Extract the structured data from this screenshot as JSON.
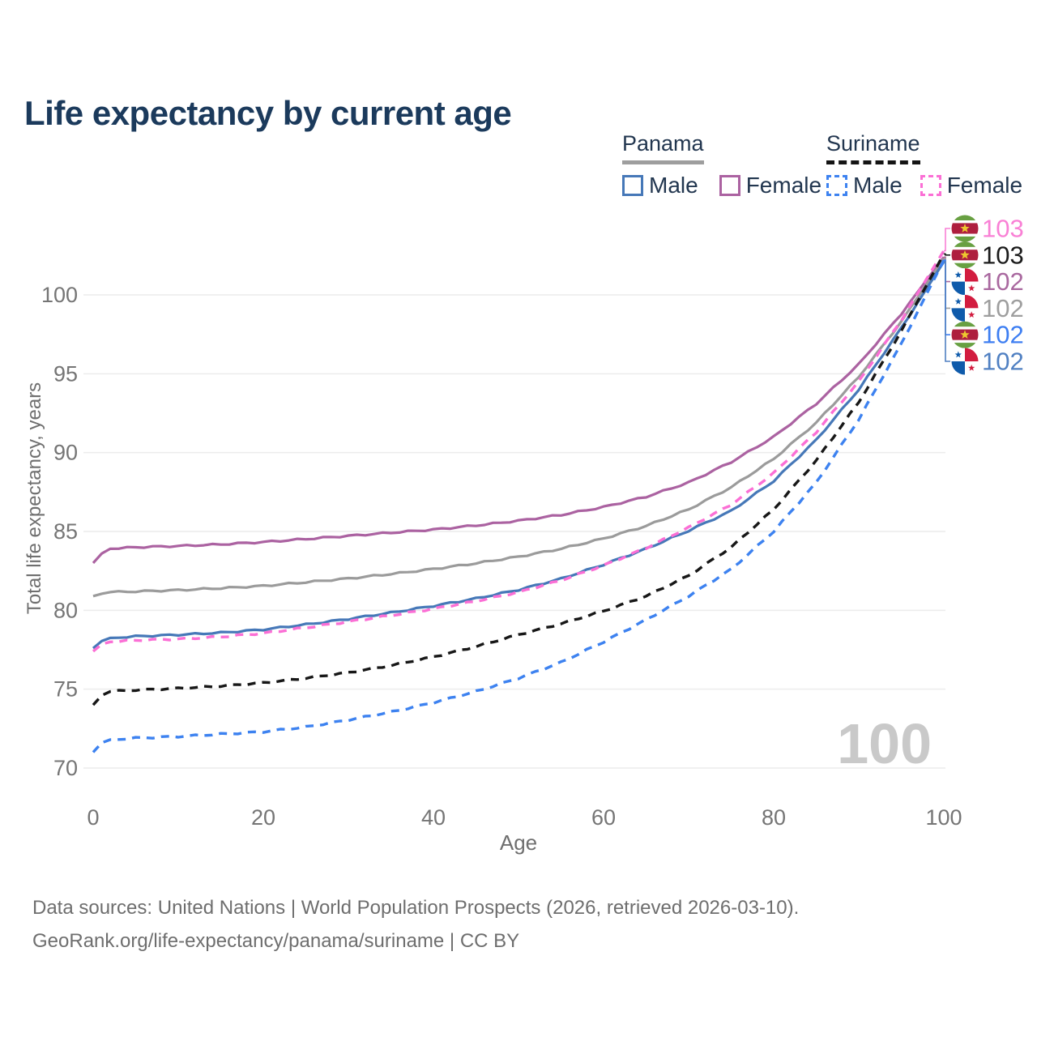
{
  "title": "Life expectancy by current age",
  "legend": {
    "groups": [
      {
        "name": "Panama",
        "line_style": "solid",
        "line_color": "#9e9e9e",
        "items": [
          {
            "label": "Male",
            "color": "#4678b8",
            "dashed": false
          },
          {
            "label": "Female",
            "color": "#ab62a1",
            "dashed": false
          }
        ]
      },
      {
        "name": "Suriname",
        "line_style": "dashed",
        "line_color": "#141414",
        "items": [
          {
            "label": "Male",
            "color": "#3d82f0",
            "dashed": true
          },
          {
            "label": "Female",
            "color": "#fb6fd5",
            "dashed": true
          }
        ]
      }
    ]
  },
  "chart_data": {
    "type": "line",
    "title": "Life expectancy by current age",
    "xlabel": "Age",
    "ylabel": "Total life expectancy, years",
    "xlim": [
      0,
      100
    ],
    "ylim": [
      69,
      103.5
    ],
    "x_ticks": [
      0,
      20,
      40,
      60,
      80,
      100
    ],
    "y_ticks": [
      70,
      75,
      80,
      85,
      90,
      95,
      100
    ],
    "grid": "horizontal-only",
    "legend_position": "top-right",
    "watermark": "100",
    "x": [
      0,
      1,
      2,
      5,
      10,
      15,
      20,
      25,
      30,
      35,
      40,
      45,
      50,
      55,
      60,
      65,
      70,
      75,
      80,
      85,
      90,
      95,
      100
    ],
    "series": [
      {
        "id": "panama_female",
        "name": "Panama Female",
        "color": "#ab62a1",
        "dashed": false,
        "values": [
          83.0,
          83.6,
          83.9,
          84.0,
          84.08,
          84.18,
          84.33,
          84.52,
          84.72,
          84.92,
          85.12,
          85.38,
          85.68,
          86.05,
          86.55,
          87.2,
          88.1,
          89.4,
          91.0,
          93.1,
          95.6,
          98.8,
          102.4
        ]
      },
      {
        "id": "panama_total",
        "name": "Panama",
        "color": "#9b9b9b",
        "dashed": false,
        "values": [
          80.9,
          81.05,
          81.15,
          81.2,
          81.28,
          81.4,
          81.55,
          81.78,
          82.02,
          82.3,
          82.62,
          82.98,
          83.4,
          83.9,
          84.55,
          85.35,
          86.4,
          87.8,
          89.6,
          91.9,
          94.8,
          98.3,
          102.3
        ]
      },
      {
        "id": "panama_male",
        "name": "Panama Male",
        "color": "#4678b8",
        "dashed": false,
        "values": [
          77.6,
          78.05,
          78.25,
          78.35,
          78.45,
          78.58,
          78.78,
          79.1,
          79.45,
          79.85,
          80.28,
          80.75,
          81.3,
          82.0,
          82.9,
          83.9,
          85.05,
          86.3,
          88.2,
          90.8,
          94.0,
          97.9,
          102.1
        ]
      },
      {
        "id": "suriname_female",
        "name": "Suriname Female",
        "color": "#fb6fd5",
        "dashed": true,
        "values": [
          77.4,
          77.85,
          78.0,
          78.1,
          78.18,
          78.32,
          78.55,
          78.9,
          79.28,
          79.68,
          80.1,
          80.58,
          81.15,
          81.9,
          82.85,
          83.95,
          85.25,
          86.7,
          88.7,
          91.3,
          94.5,
          98.4,
          102.8
        ]
      },
      {
        "id": "suriname_total",
        "name": "Suriname",
        "color": "#171717",
        "dashed": true,
        "values": [
          74.0,
          74.6,
          74.85,
          74.95,
          75.05,
          75.2,
          75.4,
          75.7,
          76.05,
          76.5,
          77.05,
          77.7,
          78.45,
          79.15,
          79.95,
          80.9,
          82.2,
          84.0,
          86.4,
          89.5,
          93.2,
          97.7,
          102.6
        ]
      },
      {
        "id": "suriname_male",
        "name": "Suriname Male",
        "color": "#3d82f0",
        "dashed": true,
        "values": [
          71.0,
          71.6,
          71.8,
          71.9,
          72.0,
          72.15,
          72.3,
          72.6,
          73.05,
          73.55,
          74.15,
          74.85,
          75.7,
          76.7,
          78.0,
          79.4,
          80.9,
          82.6,
          85.0,
          88.1,
          92.1,
          96.9,
          102.2
        ]
      }
    ],
    "end_labels": [
      {
        "value": "103",
        "color": "#f980d5",
        "flag": "suriname",
        "series_id": "suriname_female"
      },
      {
        "value": "103",
        "color": "#1b1b1b",
        "flag": "suriname",
        "series_id": "suriname_total"
      },
      {
        "value": "102",
        "color": "#a9689f",
        "flag": "panama",
        "series_id": "panama_female"
      },
      {
        "value": "102",
        "color": "#9e9e9e",
        "flag": "panama",
        "series_id": "panama_total"
      },
      {
        "value": "102",
        "color": "#3d7ef2",
        "flag": "suriname",
        "series_id": "suriname_male"
      },
      {
        "value": "102",
        "color": "#5080c2",
        "flag": "panama",
        "series_id": "panama_male"
      }
    ],
    "flags": {
      "suriname": {
        "green": "#68a042",
        "red": "#ae1f3e",
        "white": "#ffffff",
        "star": "#edc92f"
      },
      "panama": {
        "red": "#d21c3f",
        "blue": "#0f5bab",
        "white": "#ffffff"
      }
    }
  },
  "footer": {
    "line1": "Data sources: United Nations | World Population Prospects (2026, retrieved 2026-03-10).",
    "line2": "GeoRank.org/life-expectancy/panama/suriname | CC BY"
  }
}
